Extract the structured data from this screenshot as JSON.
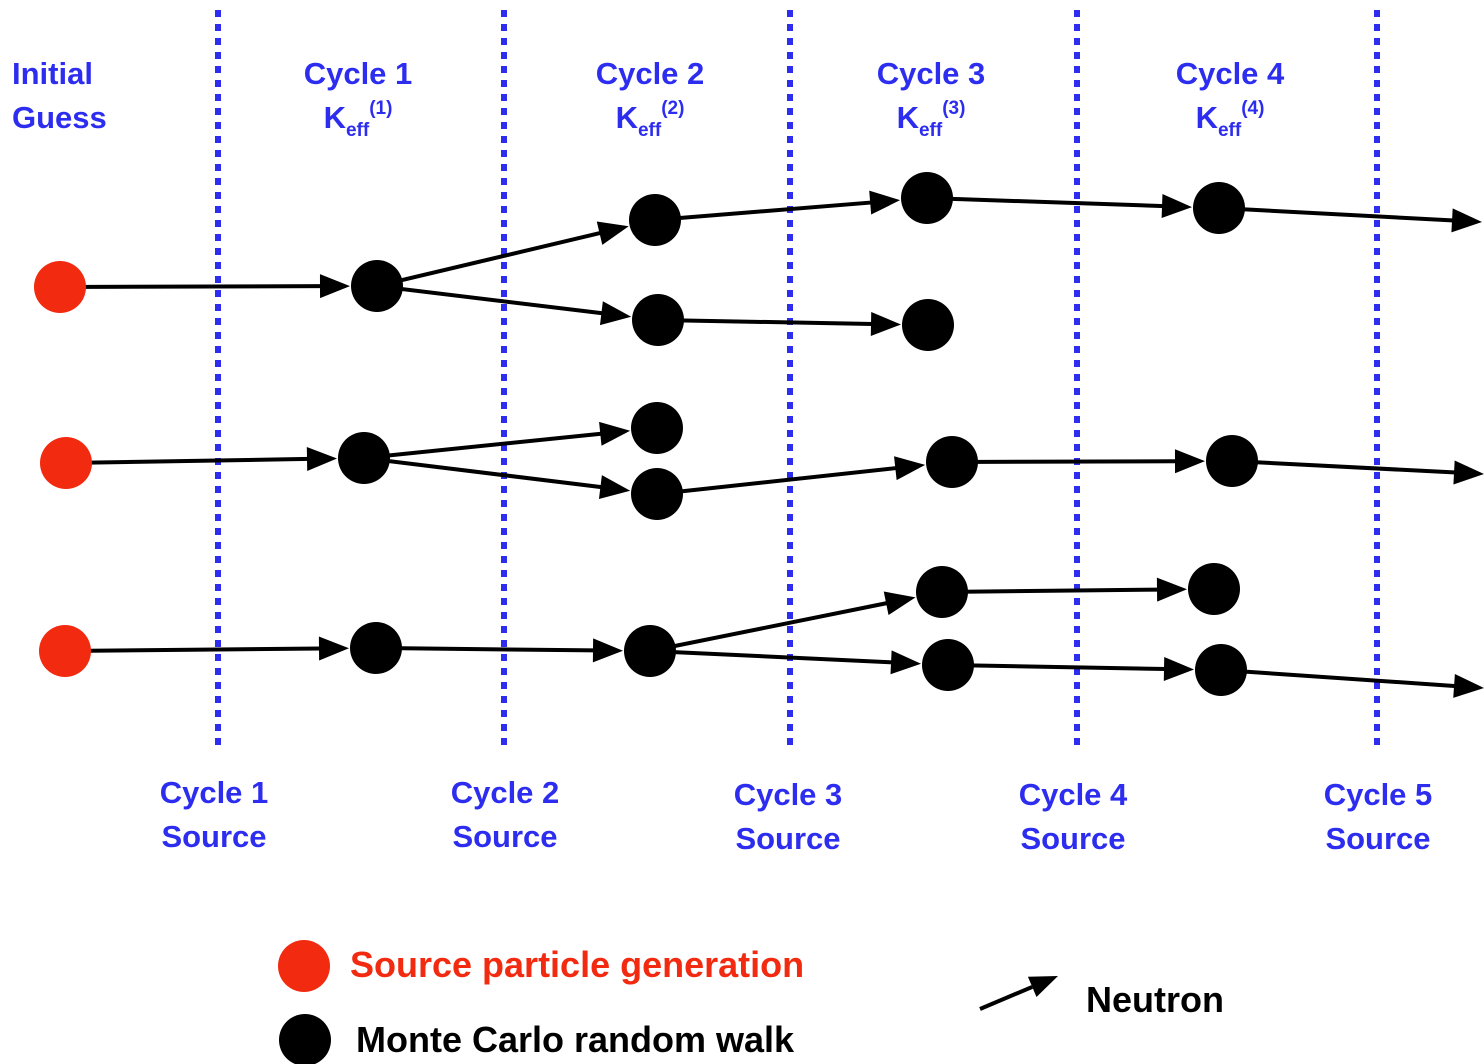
{
  "colors": {
    "divider": "#2d2df0",
    "label": "#2d2df0",
    "source": "#f22a10",
    "node": "#000000",
    "edge": "#000000"
  },
  "top_labels": {
    "initial": [
      "Initial",
      "Guess"
    ],
    "cycles": [
      {
        "line1": "Cycle 1",
        "k": "K",
        "sub": "eff",
        "sup": "(1)"
      },
      {
        "line1": "Cycle 2",
        "k": "K",
        "sub": "eff",
        "sup": "(2)"
      },
      {
        "line1": "Cycle 3",
        "k": "K",
        "sub": "eff",
        "sup": "(3)"
      },
      {
        "line1": "Cycle 4",
        "k": "K",
        "sub": "eff",
        "sup": "(4)"
      }
    ]
  },
  "bottom_labels": [
    {
      "line1": "Cycle 1",
      "line2": "Source"
    },
    {
      "line1": "Cycle 2",
      "line2": "Source"
    },
    {
      "line1": "Cycle 3",
      "line2": "Source"
    },
    {
      "line1": "Cycle 4",
      "line2": "Source"
    },
    {
      "line1": "Cycle 5",
      "line2": "Source"
    }
  ],
  "legend": {
    "source_label": "Source particle generation",
    "walk_label": "Monte Carlo random walk",
    "neutron_label": "Neutron"
  }
}
